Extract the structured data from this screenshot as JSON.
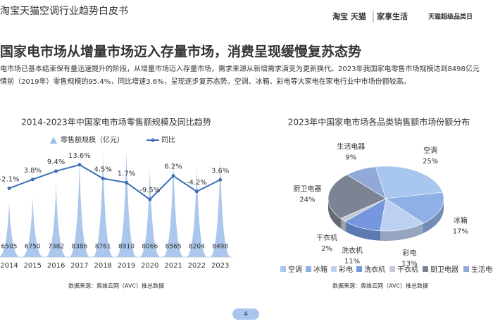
{
  "header": {
    "title": "淘宝天猫空调行业趋势白皮书",
    "brand": "淘宝 天猫",
    "partner": "家享生活",
    "event": "天猫超级品类日"
  },
  "headline": "国家电市场从增量市场迈入存量市场，消费呈现缓慢复苏态势",
  "paragraph": [
    "电市场已基本结束保有量迅速提升的阶段，从增量市场迈入存量市场，需求来源从新增需求演变为更新换代。2023年我国家电零售市场规模达到8498亿元",
    "情前（2019年）零售规模的95.4%，同比增速3.6%，呈现逐步复苏态势。空调、冰箱、彩电等大家电在家电行业中市场份额较高。"
  ],
  "page_number": "4",
  "chart_data": [
    {
      "type": "bar_line",
      "title": "2014-2023年中国家电市场零售额规模及同比趋势",
      "source": "数据来源：奥维云网（AVC）推总数据",
      "categories": [
        "2014",
        "2015",
        "2016",
        "2017",
        "2018",
        "2019",
        "2020",
        "2021",
        "2022",
        "2023"
      ],
      "series": [
        {
          "name": "零售额规模（亿元）",
          "type": "bar",
          "color": "#9dbdea",
          "values": [
            6505,
            6750,
            7382,
            8386,
            8761,
            8910,
            8066,
            8565,
            8204,
            8498
          ]
        },
        {
          "name": "同比",
          "type": "line",
          "axis": "y2",
          "color": "#3b6fb6",
          "values": [
            -2.1,
            3.8,
            9.4,
            13.6,
            4.5,
            1.7,
            -9.5,
            6.2,
            -4.2,
            3.6
          ],
          "value_labels": [
            "-2.1%",
            "3.8%",
            "9.4%",
            "13.6%",
            "4.5%",
            "1.7%",
            "-9.5%",
            "6.2%",
            "-4.2%",
            "3.6%"
          ]
        }
      ],
      "ylim": [
        4000,
        10000
      ],
      "y2lim": [
        -48,
        39
      ]
    },
    {
      "type": "pie",
      "title": "2023年中国家电市场各品类销售额市场份额分布",
      "source": "数据来源：奥维云网（AVC）推总数据",
      "categories": [
        "空调",
        "冰箱",
        "彩电",
        "洗衣机",
        "干衣机",
        "厨卫电器",
        "生活电器"
      ],
      "values": [
        25,
        17,
        13,
        11,
        2,
        24,
        9
      ],
      "value_labels": [
        "25%",
        "17%",
        "13%",
        "11%",
        "2%",
        "24%",
        "9%"
      ],
      "colors": [
        "#a9c6f0",
        "#8fb0e6",
        "#bcd0f1",
        "#7497de",
        "#c3c9d6",
        "#7c8494",
        "#92a8d8"
      ]
    }
  ]
}
